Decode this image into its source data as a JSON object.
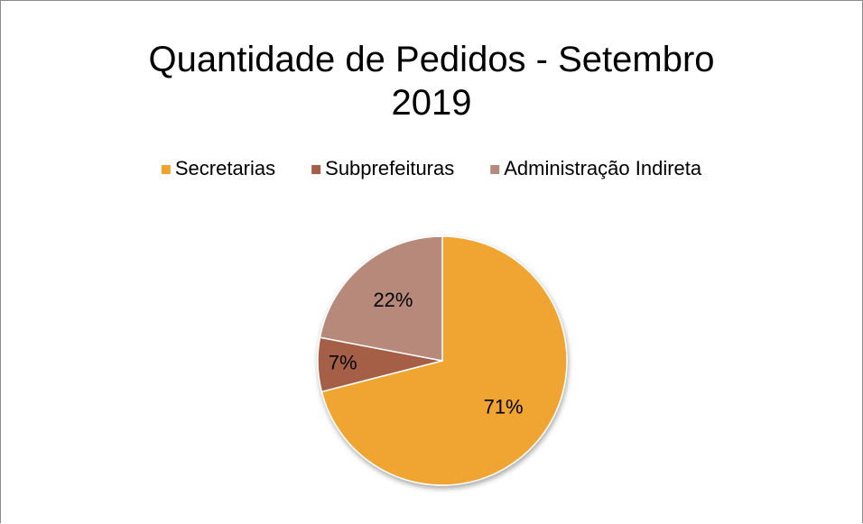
{
  "chart_data": {
    "type": "pie",
    "title": "Quantidade de Pedidos - Setembro 2019",
    "categories": [
      "Secretarias",
      "Subprefeituras",
      "Administração Indireta"
    ],
    "values": [
      71,
      7,
      22
    ],
    "value_labels": [
      "71%",
      "7%",
      "22%"
    ],
    "colors": [
      "#f0a430",
      "#a65e47",
      "#b7897a"
    ],
    "legend": "top"
  }
}
